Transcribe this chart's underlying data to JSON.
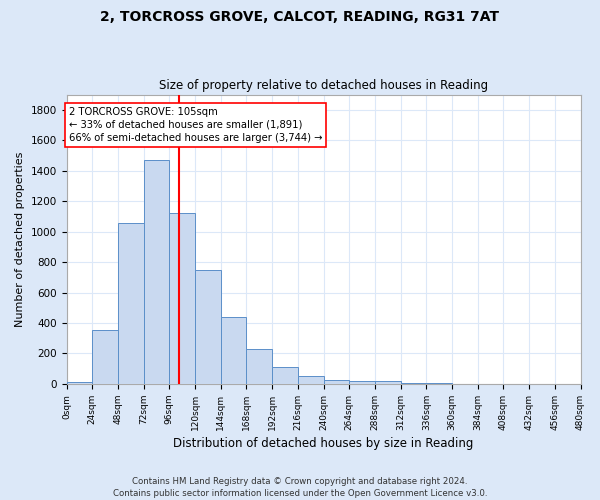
{
  "title": "2, TORCROSS GROVE, CALCOT, READING, RG31 7AT",
  "subtitle": "Size of property relative to detached houses in Reading",
  "xlabel": "Distribution of detached houses by size in Reading",
  "ylabel": "Number of detached properties",
  "bin_edges": [
    0,
    24,
    48,
    72,
    96,
    120,
    144,
    168,
    192,
    216,
    240,
    264,
    288,
    312,
    336,
    360,
    384,
    408,
    432,
    456,
    480
  ],
  "bar_heights": [
    15,
    355,
    1060,
    1470,
    1120,
    745,
    440,
    230,
    110,
    55,
    25,
    20,
    20,
    5,
    5,
    0,
    0,
    0,
    0,
    0
  ],
  "bar_color": "#c9d9f0",
  "bar_edge_color": "#5b8fc9",
  "red_line_x": 105,
  "ylim": [
    0,
    1900
  ],
  "yticks": [
    0,
    200,
    400,
    600,
    800,
    1000,
    1200,
    1400,
    1600,
    1800
  ],
  "annotation_title": "2 TORCROSS GROVE: 105sqm",
  "annotation_line1": "← 33% of detached houses are smaller (1,891)",
  "annotation_line2": "66% of semi-detached houses are larger (3,744) →",
  "footer_line1": "Contains HM Land Registry data © Crown copyright and database right 2024.",
  "footer_line2": "Contains public sector information licensed under the Open Government Licence v3.0.",
  "figure_facecolor": "#dce8f8",
  "plot_facecolor": "#ffffff"
}
